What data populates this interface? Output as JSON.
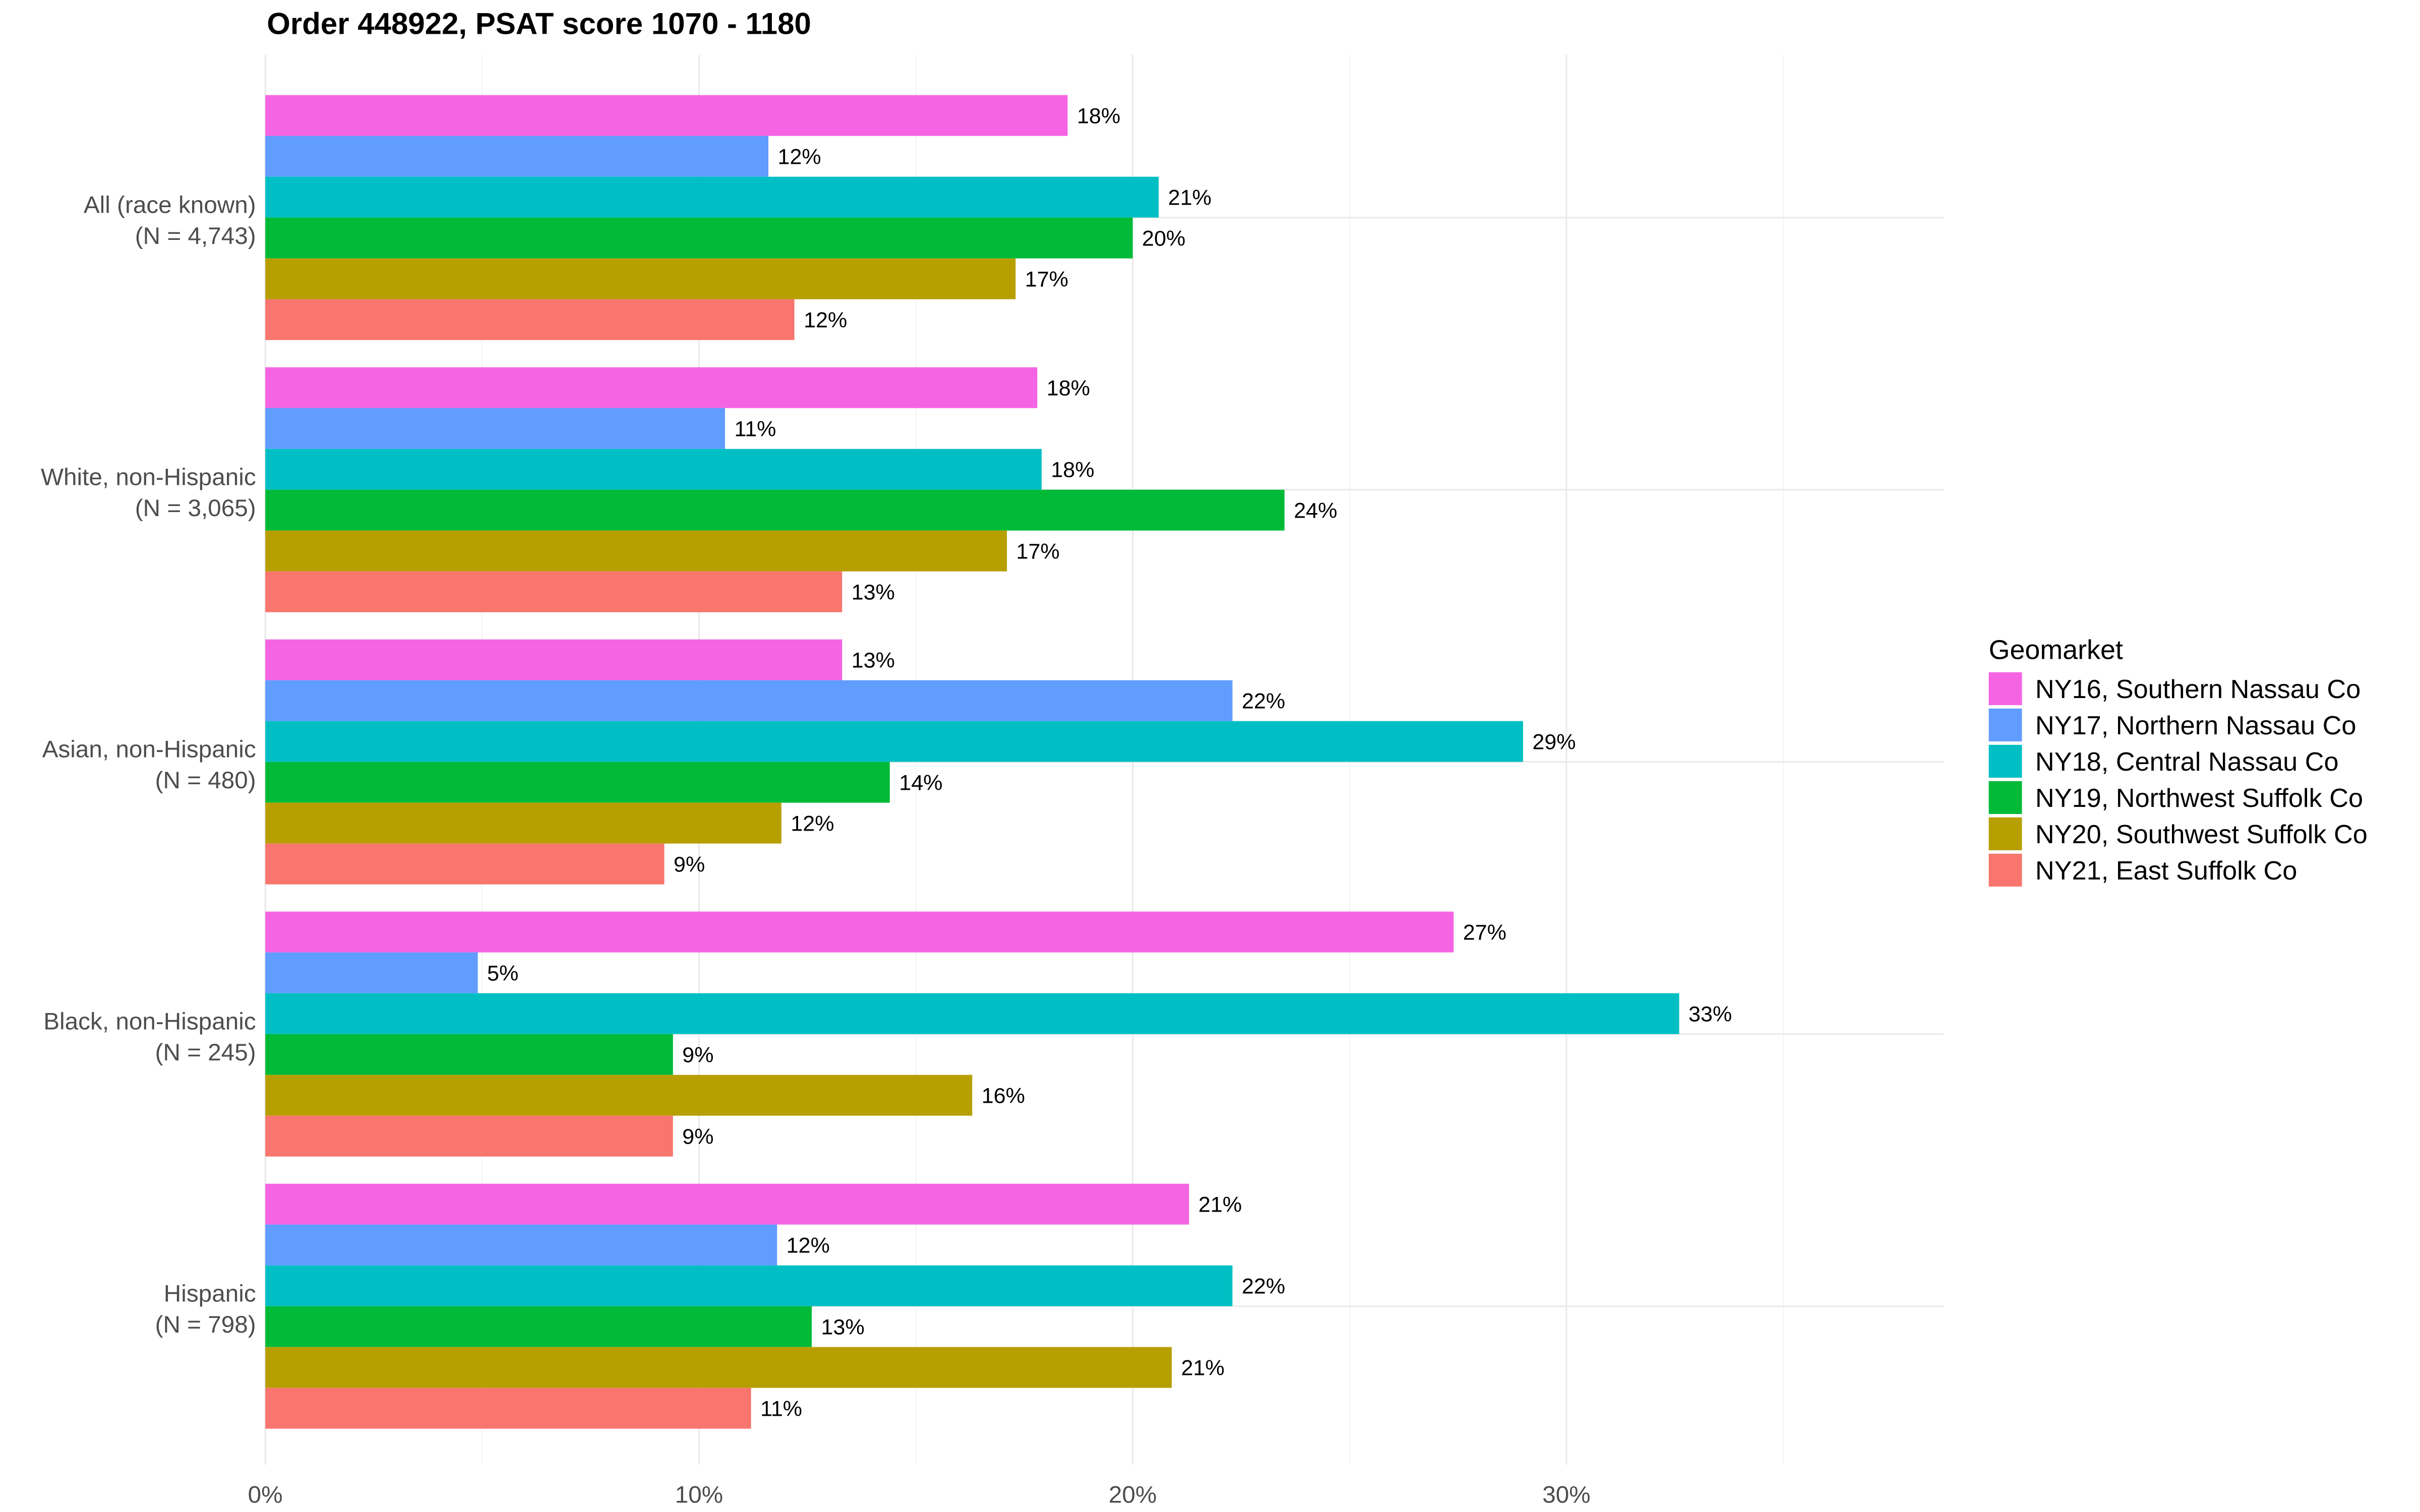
{
  "chart_data": {
    "type": "bar",
    "orientation": "horizontal",
    "title": "Order 448922, PSAT score 1070 - 1180",
    "xlabel": "",
    "ylabel": "",
    "xlim": [
      0,
      38.7
    ],
    "x_ticks": [
      0,
      10,
      20,
      30
    ],
    "x_tick_labels": [
      "0%",
      "10%",
      "20%",
      "30%"
    ],
    "x_minor_gridlines": [
      5,
      15,
      25,
      35
    ],
    "grid": true,
    "categories": [
      {
        "line1": "All (race known)",
        "line2": "(N = 4,743)"
      },
      {
        "line1": "White, non-Hispanic",
        "line2": "(N = 3,065)"
      },
      {
        "line1": "Asian, non-Hispanic",
        "line2": "(N = 480)"
      },
      {
        "line1": "Black, non-Hispanic",
        "line2": "(N = 245)"
      },
      {
        "line1": "Hispanic",
        "line2": "(N = 798)"
      }
    ],
    "legend": {
      "title": "Geomarket",
      "placement": "right"
    },
    "series": [
      {
        "name": "NY16, Southern Nassau Co",
        "color": "#F564E3",
        "values": [
          18.5,
          17.8,
          13.3,
          27.4,
          21.3
        ],
        "labels": [
          "18%",
          "18%",
          "13%",
          "27%",
          "21%"
        ]
      },
      {
        "name": "NY17, Northern Nassau Co",
        "color": "#619CFF",
        "values": [
          11.6,
          10.6,
          22.3,
          4.9,
          11.8
        ],
        "labels": [
          "12%",
          "11%",
          "22%",
          "5%",
          "12%"
        ]
      },
      {
        "name": "NY18, Central Nassau Co",
        "color": "#00BFC4",
        "values": [
          20.6,
          17.9,
          29.0,
          32.6,
          22.3
        ],
        "labels": [
          "21%",
          "18%",
          "29%",
          "33%",
          "22%"
        ]
      },
      {
        "name": "NY19, Northwest Suffolk Co",
        "color": "#00BA38",
        "values": [
          20.0,
          23.5,
          14.4,
          9.4,
          12.6
        ],
        "labels": [
          "20%",
          "24%",
          "14%",
          "9%",
          "13%"
        ]
      },
      {
        "name": "NY20, Southwest Suffolk Co",
        "color": "#B79F00",
        "values": [
          17.3,
          17.1,
          11.9,
          16.3,
          20.9
        ],
        "labels": [
          "17%",
          "17%",
          "12%",
          "16%",
          "21%"
        ]
      },
      {
        "name": "NY21, East Suffolk Co",
        "color": "#F8766D",
        "values": [
          12.2,
          13.3,
          9.2,
          9.4,
          11.2
        ],
        "labels": [
          "12%",
          "13%",
          "9%",
          "9%",
          "11%"
        ]
      }
    ]
  }
}
